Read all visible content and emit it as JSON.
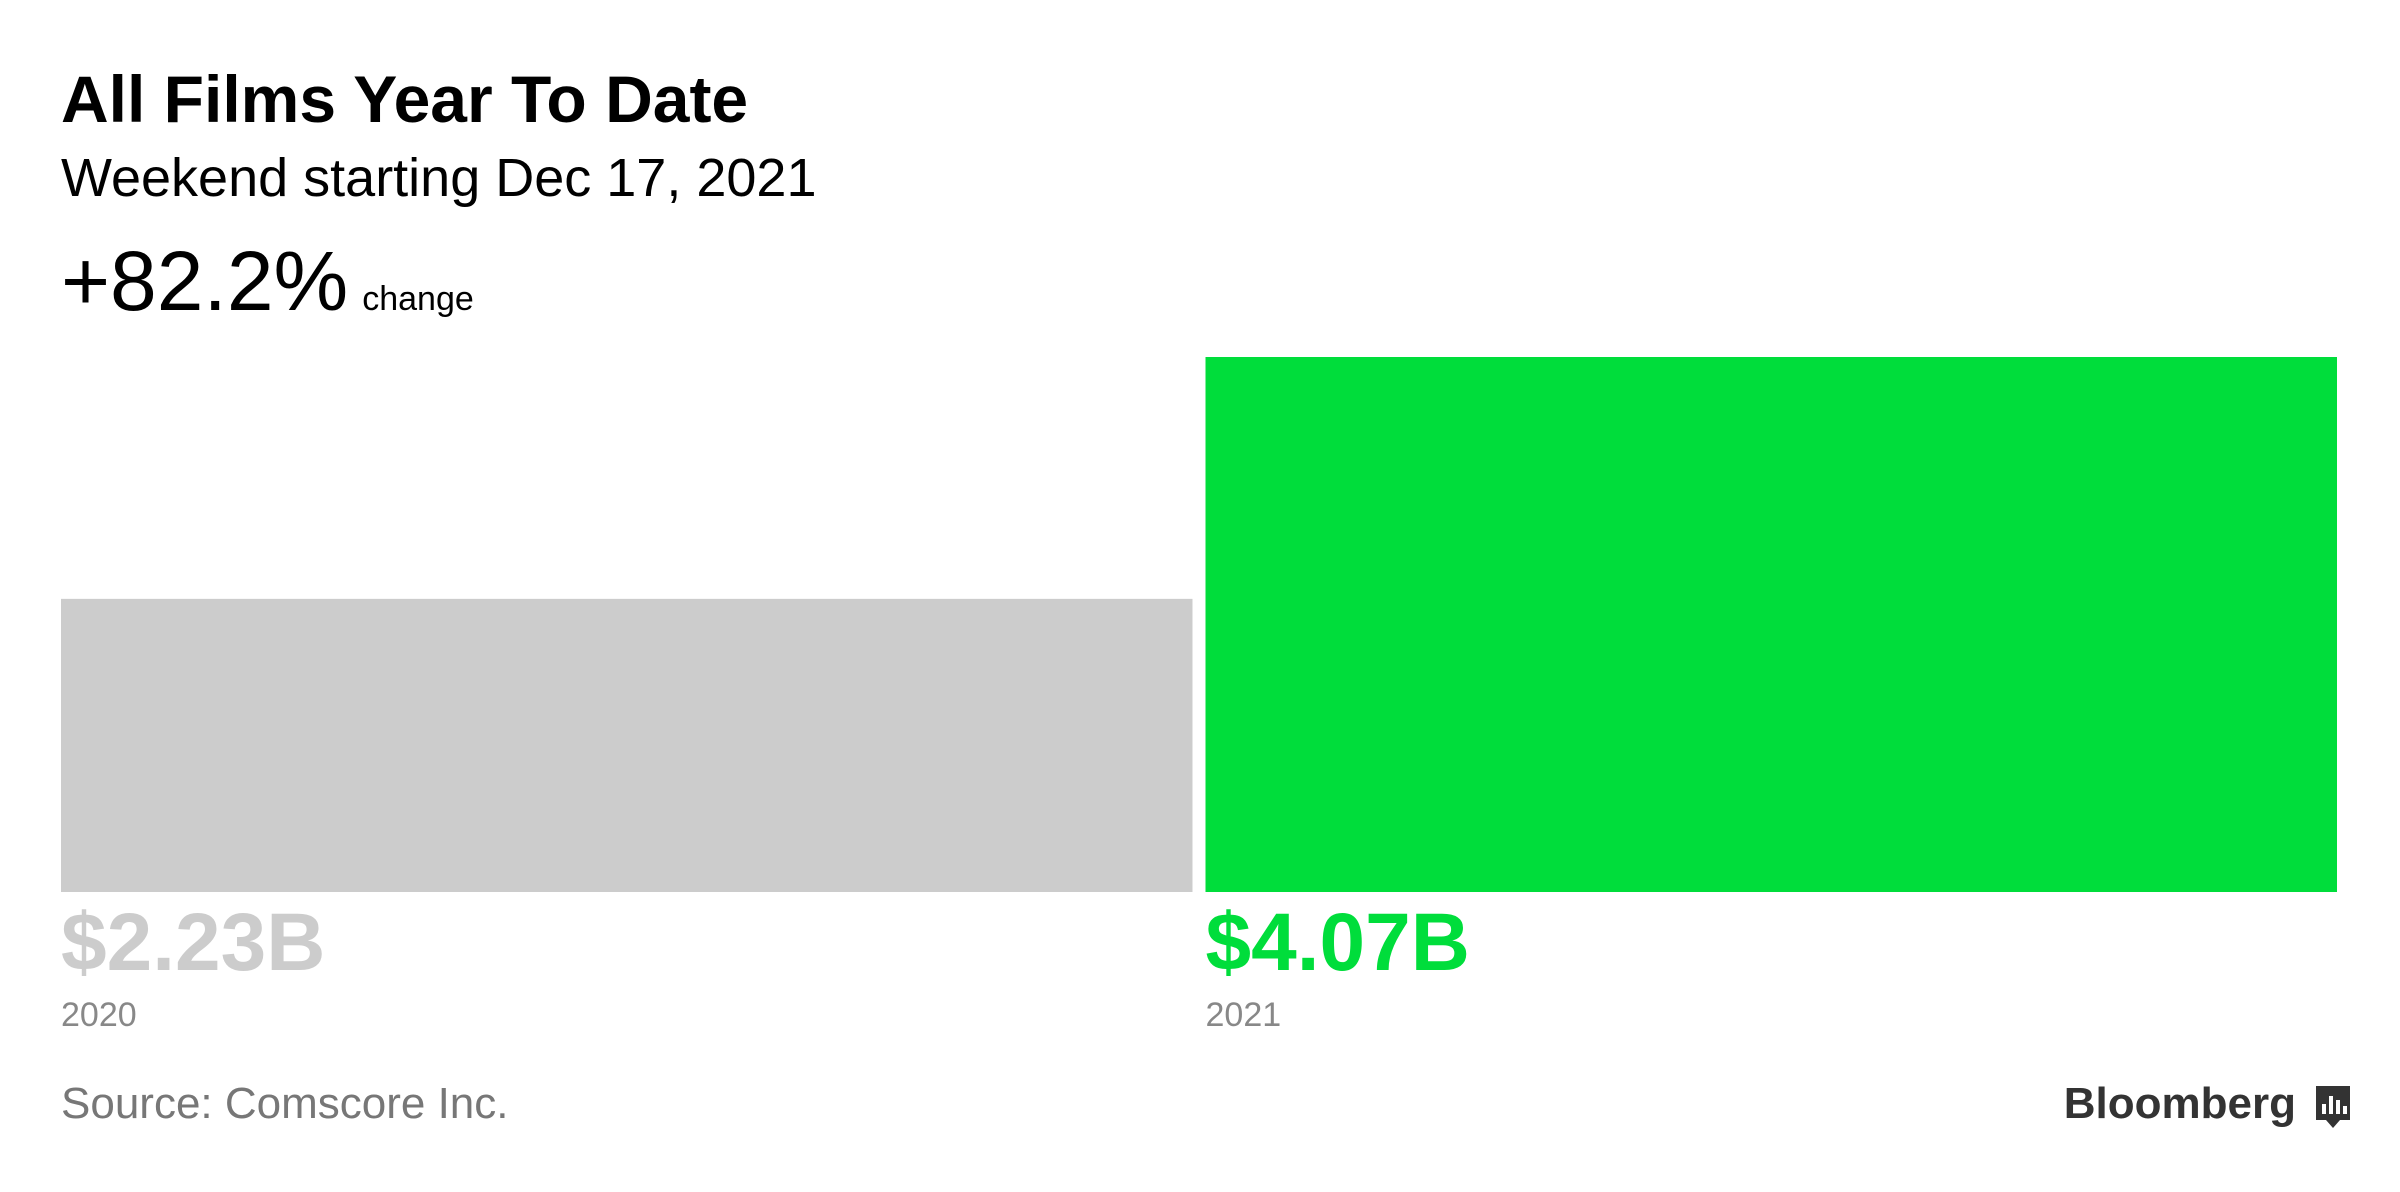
{
  "chart_data": {
    "type": "bar",
    "title": "All Films Year To Date",
    "subtitle": "Weekend starting Dec 17, 2021",
    "change": "+82.2%",
    "change_label": "change",
    "categories": [
      "2020",
      "2021"
    ],
    "values": [
      2.23,
      4.07
    ],
    "value_labels": [
      "$2.23B",
      "$4.07B"
    ],
    "colors": [
      "#cccccc",
      "#00dd3b"
    ],
    "source": "Source: Comscore Inc.",
    "brand": "Bloomberg"
  }
}
